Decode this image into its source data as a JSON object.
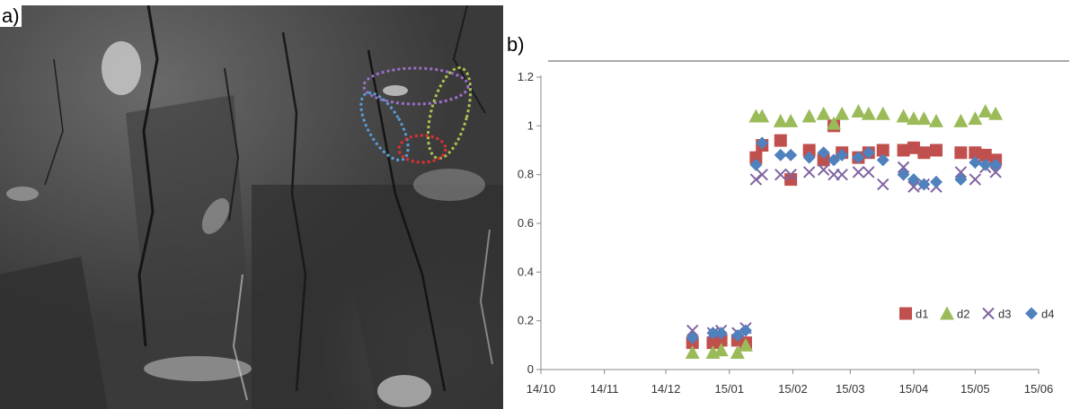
{
  "panel_labels": {
    "a": "a)",
    "b": "b)"
  },
  "photo": {
    "description_icon": "grayscale-rock-photo",
    "ellipse_colors": {
      "purple": "#9b6fc8",
      "green": "#a9c44f",
      "blue": "#5b9bd5",
      "red": "#e03030"
    }
  },
  "chart_data": {
    "type": "scatter",
    "xlabel": "",
    "ylabel": "",
    "ylim": [
      0,
      1.2
    ],
    "yticks": [
      "0",
      "0.2",
      "0.4",
      "0.6",
      "0.8",
      "1",
      "1.2"
    ],
    "xlim": [
      "2014-10-01",
      "2015-06-01"
    ],
    "xticks": [
      {
        "date": "2014-10-01",
        "label": "14/10"
      },
      {
        "date": "2014-11-01",
        "label": "14/11"
      },
      {
        "date": "2014-12-01",
        "label": "14/12"
      },
      {
        "date": "2015-01-01",
        "label": "15/01"
      },
      {
        "date": "2015-02-01",
        "label": "15/02"
      },
      {
        "date": "2015-03-01",
        "label": "15/03"
      },
      {
        "date": "2015-04-01",
        "label": "15/04"
      },
      {
        "date": "2015-05-01",
        "label": "15/05"
      },
      {
        "date": "2015-06-01",
        "label": "15/06"
      }
    ],
    "legend_position": "bottom-right",
    "series": [
      {
        "name": "d1",
        "marker": "square",
        "color": "#c0504d",
        "points": [
          [
            "2014-12-14",
            0.11
          ],
          [
            "2014-12-24",
            0.11
          ],
          [
            "2014-12-28",
            0.12
          ],
          [
            "2015-01-05",
            0.12
          ],
          [
            "2015-01-09",
            0.11
          ],
          [
            "2015-01-14",
            0.87
          ],
          [
            "2015-01-17",
            0.92
          ],
          [
            "2015-01-26",
            0.94
          ],
          [
            "2015-01-31",
            0.78
          ],
          [
            "2015-02-09",
            0.9
          ],
          [
            "2015-02-16",
            0.86
          ],
          [
            "2015-02-21",
            1.0
          ],
          [
            "2015-02-25",
            0.89
          ],
          [
            "2015-03-05",
            0.87
          ],
          [
            "2015-03-10",
            0.89
          ],
          [
            "2015-03-17",
            0.9
          ],
          [
            "2015-03-27",
            0.9
          ],
          [
            "2015-04-01",
            0.91
          ],
          [
            "2015-04-06",
            0.89
          ],
          [
            "2015-04-12",
            0.9
          ],
          [
            "2015-04-24",
            0.89
          ],
          [
            "2015-05-01",
            0.89
          ],
          [
            "2015-05-06",
            0.88
          ],
          [
            "2015-05-11",
            0.86
          ]
        ]
      },
      {
        "name": "d2",
        "marker": "triangle",
        "color": "#9bbb59",
        "points": [
          [
            "2014-12-14",
            0.07
          ],
          [
            "2014-12-24",
            0.07
          ],
          [
            "2014-12-28",
            0.08
          ],
          [
            "2015-01-05",
            0.07
          ],
          [
            "2015-01-09",
            0.1
          ],
          [
            "2015-01-14",
            1.04
          ],
          [
            "2015-01-17",
            1.04
          ],
          [
            "2015-01-26",
            1.02
          ],
          [
            "2015-01-31",
            1.02
          ],
          [
            "2015-02-09",
            1.04
          ],
          [
            "2015-02-16",
            1.05
          ],
          [
            "2015-02-21",
            1.01
          ],
          [
            "2015-02-25",
            1.05
          ],
          [
            "2015-03-05",
            1.06
          ],
          [
            "2015-03-10",
            1.05
          ],
          [
            "2015-03-17",
            1.05
          ],
          [
            "2015-03-27",
            1.04
          ],
          [
            "2015-04-01",
            1.03
          ],
          [
            "2015-04-06",
            1.03
          ],
          [
            "2015-04-12",
            1.02
          ],
          [
            "2015-04-24",
            1.02
          ],
          [
            "2015-05-01",
            1.03
          ],
          [
            "2015-05-06",
            1.06
          ],
          [
            "2015-05-11",
            1.05
          ]
        ]
      },
      {
        "name": "d3",
        "marker": "x",
        "color": "#8064a2",
        "points": [
          [
            "2014-12-14",
            0.16
          ],
          [
            "2014-12-24",
            0.15
          ],
          [
            "2014-12-28",
            0.16
          ],
          [
            "2015-01-05",
            0.15
          ],
          [
            "2015-01-09",
            0.17
          ],
          [
            "2015-01-14",
            0.78
          ],
          [
            "2015-01-17",
            0.8
          ],
          [
            "2015-01-26",
            0.8
          ],
          [
            "2015-01-31",
            0.8
          ],
          [
            "2015-02-09",
            0.81
          ],
          [
            "2015-02-16",
            0.82
          ],
          [
            "2015-02-21",
            0.8
          ],
          [
            "2015-02-25",
            0.8
          ],
          [
            "2015-03-05",
            0.81
          ],
          [
            "2015-03-10",
            0.81
          ],
          [
            "2015-03-17",
            0.76
          ],
          [
            "2015-03-27",
            0.83
          ],
          [
            "2015-04-01",
            0.75
          ],
          [
            "2015-04-06",
            0.76
          ],
          [
            "2015-04-12",
            0.75
          ],
          [
            "2015-04-24",
            0.81
          ],
          [
            "2015-05-01",
            0.78
          ],
          [
            "2015-05-06",
            0.83
          ],
          [
            "2015-05-11",
            0.81
          ]
        ]
      },
      {
        "name": "d4",
        "marker": "diamond",
        "color": "#4f81bd",
        "points": [
          [
            "2014-12-14",
            0.13
          ],
          [
            "2014-12-24",
            0.15
          ],
          [
            "2014-12-28",
            0.15
          ],
          [
            "2015-01-05",
            0.14
          ],
          [
            "2015-01-09",
            0.16
          ],
          [
            "2015-01-14",
            0.84
          ],
          [
            "2015-01-17",
            0.93
          ],
          [
            "2015-01-26",
            0.88
          ],
          [
            "2015-01-31",
            0.88
          ],
          [
            "2015-02-09",
            0.87
          ],
          [
            "2015-02-16",
            0.89
          ],
          [
            "2015-02-21",
            0.86
          ],
          [
            "2015-02-25",
            0.88
          ],
          [
            "2015-03-05",
            0.87
          ],
          [
            "2015-03-10",
            0.89
          ],
          [
            "2015-03-17",
            0.86
          ],
          [
            "2015-03-27",
            0.8
          ],
          [
            "2015-04-01",
            0.78
          ],
          [
            "2015-04-06",
            0.76
          ],
          [
            "2015-04-12",
            0.77
          ],
          [
            "2015-04-24",
            0.78
          ],
          [
            "2015-05-01",
            0.85
          ],
          [
            "2015-05-06",
            0.84
          ],
          [
            "2015-05-11",
            0.84
          ]
        ]
      }
    ]
  }
}
